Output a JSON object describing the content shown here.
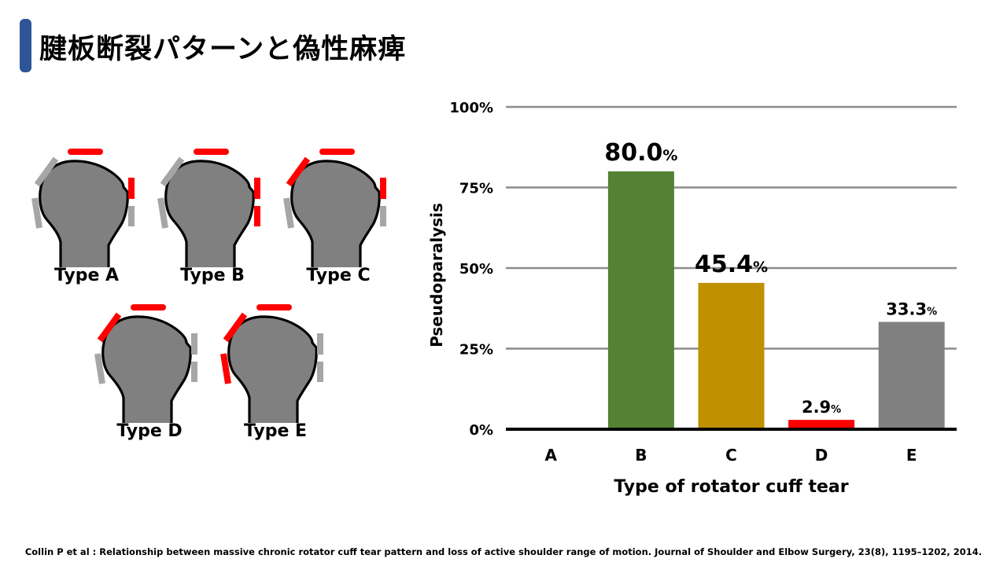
{
  "slide": {
    "title": "腱板断裂パターンと偽性麻痺",
    "citation": "Collin P et al : Relationship between massive chronic rotator cuff tear pattern and loss of active shoulder range of motion. Journal of Shoulder and Elbow Surgery, 23(8), 1195–1202, 2014."
  },
  "colors": {
    "accent": "#2e5597",
    "torn": "#ff0000",
    "intact": "#a6a6a6",
    "humerus": "#808080"
  },
  "diagrams": [
    {
      "label": "Type A",
      "ant_lower": "intact",
      "ant_upper": "intact",
      "top": "torn",
      "post_upper": "torn",
      "post_lower": "intact"
    },
    {
      "label": "Type B",
      "ant_lower": "intact",
      "ant_upper": "intact",
      "top": "torn",
      "post_upper": "torn",
      "post_lower": "torn"
    },
    {
      "label": "Type C",
      "ant_lower": "intact",
      "ant_upper": "torn",
      "top": "torn",
      "post_upper": "torn",
      "post_lower": "intact"
    },
    {
      "label": "Type D",
      "ant_lower": "intact",
      "ant_upper": "torn",
      "top": "torn",
      "post_upper": "intact",
      "post_lower": "intact"
    },
    {
      "label": "Type E",
      "ant_lower": "torn",
      "ant_upper": "torn",
      "top": "torn",
      "post_upper": "intact",
      "post_lower": "intact"
    }
  ],
  "chart_data": {
    "type": "bar",
    "categories": [
      "A",
      "B",
      "C",
      "D",
      "E"
    ],
    "values": [
      0,
      80.0,
      45.4,
      2.9,
      33.3
    ],
    "value_labels": [
      "",
      "80.0",
      "45.4",
      "2.9",
      "33.3"
    ],
    "value_unit": "%",
    "bar_colors": [
      "#808080",
      "#548235",
      "#bf9000",
      "#ff0000",
      "#808080"
    ],
    "xlabel": "Type of rotator cuff tear",
    "ylabel": "Pseudoparalysis",
    "ylim": [
      0,
      100
    ],
    "yticks": [
      "0%",
      "25%",
      "50%",
      "75%",
      "100%"
    ],
    "grid": true
  }
}
